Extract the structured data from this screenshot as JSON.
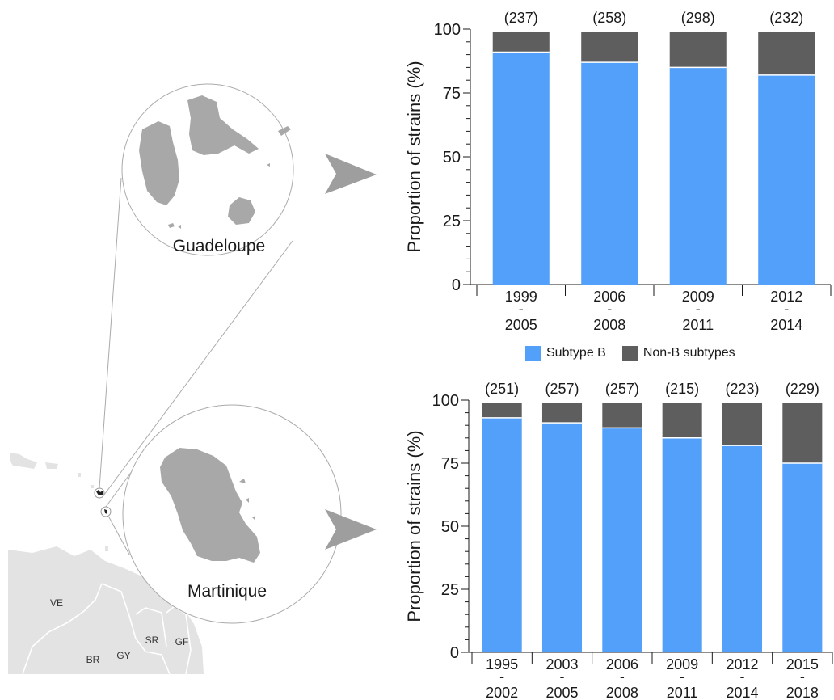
{
  "map": {
    "inset_labels": {
      "guadeloupe": "Guadeloupe",
      "martinique": "Martinique"
    },
    "country_labels": {
      "ve": "VE",
      "br": "BR",
      "gy": "GY",
      "sr": "SR",
      "gf": "GF"
    },
    "colors": {
      "island": "#a8a8a8",
      "land": "#e3e3e3",
      "border": "#ffffff",
      "circle": "#aaaaaa",
      "arrow": "#9e9e9e"
    }
  },
  "legend": [
    {
      "label": "Subtype B",
      "color": "#52a0fa"
    },
    {
      "label": "Non-B subtypes",
      "color": "#5e5e5e"
    }
  ],
  "chart_data": [
    {
      "type": "bar",
      "stacked": true,
      "region": "Guadeloupe",
      "ylabel": "Proportion of strains (%)",
      "ylim": [
        0,
        100
      ],
      "yticks": [
        0,
        25,
        50,
        75,
        100
      ],
      "categories": [
        {
          "start": "1999",
          "dash": "-",
          "end": "2005"
        },
        {
          "start": "2006",
          "dash": "-",
          "end": "2008"
        },
        {
          "start": "2009",
          "dash": "-",
          "end": "2011"
        },
        {
          "start": "2012",
          "dash": "-",
          "end": "2014"
        }
      ],
      "counts": [
        "(237)",
        "(258)",
        "(298)",
        "(232)"
      ],
      "series": [
        {
          "name": "Subtype B",
          "color": "#52a0fa",
          "values": [
            91,
            87,
            85,
            82
          ]
        },
        {
          "name": "Non-B subtypes",
          "color": "#5e5e5e",
          "values": [
            8,
            12,
            14,
            17
          ]
        }
      ]
    },
    {
      "type": "bar",
      "stacked": true,
      "region": "Martinique",
      "ylabel": "Proportion of strains (%)",
      "ylim": [
        0,
        100
      ],
      "yticks": [
        0,
        25,
        50,
        75,
        100
      ],
      "categories": [
        {
          "start": "1995",
          "dash": "-",
          "end": "2002"
        },
        {
          "start": "2003",
          "dash": "-",
          "end": "2005"
        },
        {
          "start": "2006",
          "dash": "-",
          "end": "2008"
        },
        {
          "start": "2009",
          "dash": "-",
          "end": "2011"
        },
        {
          "start": "2012",
          "dash": "-",
          "end": "2014"
        },
        {
          "start": "2015",
          "dash": "-",
          "end": "2018"
        }
      ],
      "counts": [
        "(251)",
        "(257)",
        "(257)",
        "(215)",
        "(223)",
        "(229)"
      ],
      "series": [
        {
          "name": "Subtype B",
          "color": "#52a0fa",
          "values": [
            93,
            91,
            89,
            85,
            82,
            75
          ]
        },
        {
          "name": "Non-B subtypes",
          "color": "#5e5e5e",
          "values": [
            6,
            8,
            10,
            14,
            17,
            24
          ]
        }
      ]
    }
  ]
}
